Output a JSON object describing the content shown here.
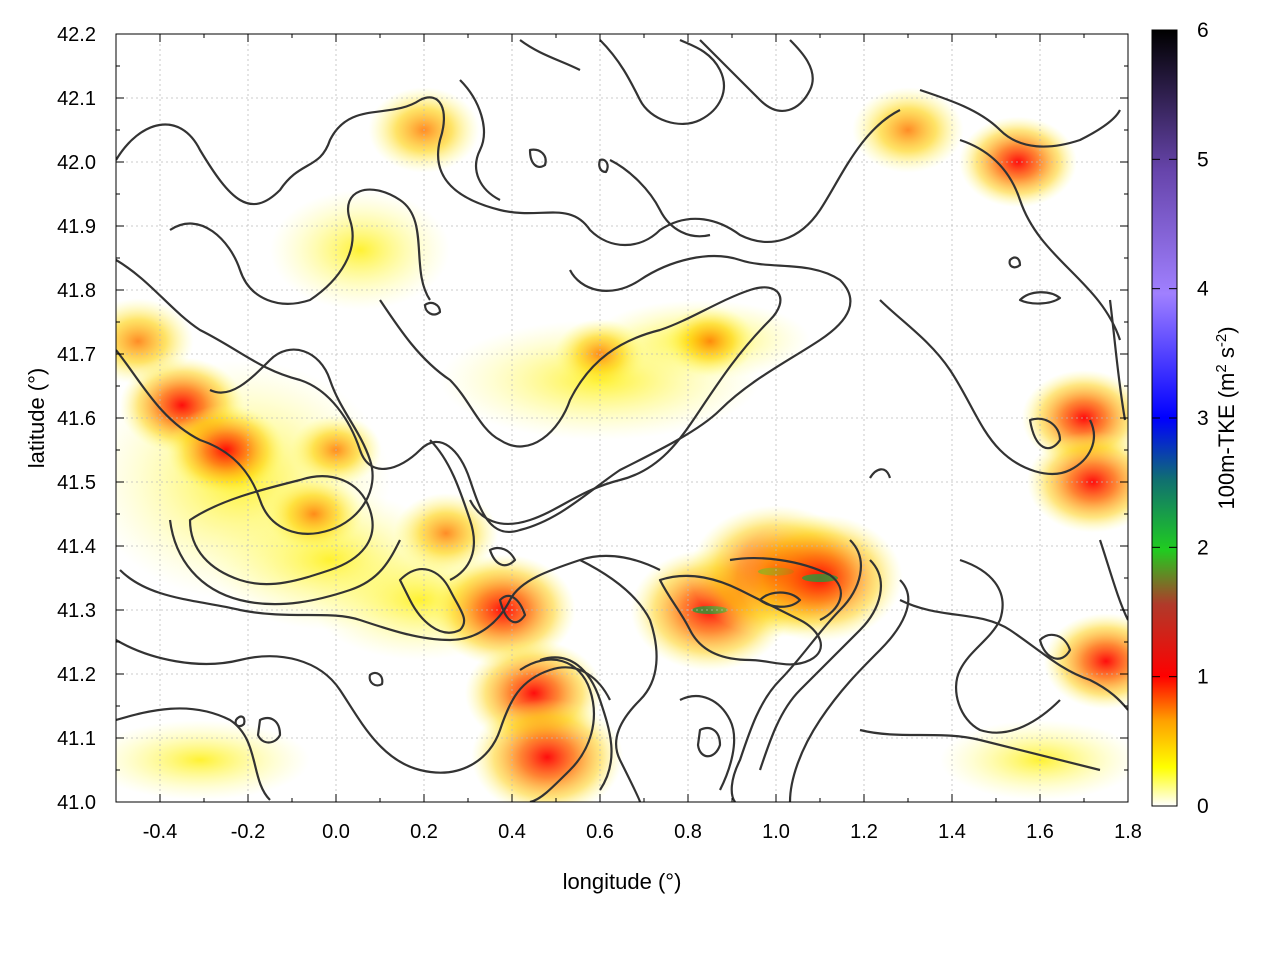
{
  "chart_data": {
    "type": "heatmap",
    "title": "",
    "xlabel": "longitude (°)",
    "ylabel": "latitude (°)",
    "xlim": [
      -0.5,
      1.8
    ],
    "ylim": [
      41.0,
      42.2
    ],
    "xticks": [
      "-0.4",
      "-0.2",
      "0.0",
      "0.2",
      "0.4",
      "0.6",
      "0.8",
      "1.0",
      "1.2",
      "1.4",
      "1.6",
      "1.8"
    ],
    "yticks": [
      "41.0",
      "41.1",
      "41.2",
      "41.3",
      "41.4",
      "41.5",
      "41.6",
      "41.7",
      "41.8",
      "41.9",
      "42.0",
      "42.1",
      "42.2"
    ],
    "grid": true,
    "overlay": "black terrain contour lines",
    "colorbar": {
      "label": "100m-TKE (m² s⁻²)",
      "range": [
        0,
        6
      ],
      "ticks": [
        "0",
        "1",
        "2",
        "3",
        "4",
        "5",
        "6"
      ],
      "colors": [
        "#ffffff",
        "#ffff00",
        "#ffa500",
        "#ff0000",
        "#cc2222",
        "#22cc22",
        "#0000ff",
        "#aa77ff",
        "#8855cc",
        "#000000"
      ]
    },
    "hotspots": [
      {
        "lon": -0.35,
        "lat": 41.62,
        "tke": 1.0
      },
      {
        "lon": -0.25,
        "lat": 41.55,
        "tke": 0.9
      },
      {
        "lon": -0.45,
        "lat": 41.72,
        "tke": 0.8
      },
      {
        "lon": -0.05,
        "lat": 41.45,
        "tke": 0.6
      },
      {
        "lon": 0.0,
        "lat": 41.55,
        "tke": 0.5
      },
      {
        "lon": 0.25,
        "lat": 41.42,
        "tke": 0.7
      },
      {
        "lon": 0.38,
        "lat": 41.3,
        "tke": 1.3
      },
      {
        "lon": 0.45,
        "lat": 41.17,
        "tke": 1.2
      },
      {
        "lon": 0.48,
        "lat": 41.07,
        "tke": 1.4
      },
      {
        "lon": 0.85,
        "lat": 41.3,
        "tke": 1.5
      },
      {
        "lon": 1.0,
        "lat": 41.36,
        "tke": 1.7
      },
      {
        "lon": 1.1,
        "lat": 41.35,
        "tke": 1.6
      },
      {
        "lon": 1.7,
        "lat": 41.6,
        "tke": 1.0
      },
      {
        "lon": 1.72,
        "lat": 41.5,
        "tke": 1.1
      },
      {
        "lon": 1.55,
        "lat": 42.0,
        "tke": 0.9
      },
      {
        "lon": 1.3,
        "lat": 42.05,
        "tke": 0.8
      },
      {
        "lon": 0.2,
        "lat": 42.05,
        "tke": 0.8
      },
      {
        "lon": 1.75,
        "lat": 41.22,
        "tke": 1.0
      },
      {
        "lon": 0.6,
        "lat": 41.7,
        "tke": 0.5
      },
      {
        "lon": 0.85,
        "lat": 41.72,
        "tke": 0.5
      }
    ]
  }
}
